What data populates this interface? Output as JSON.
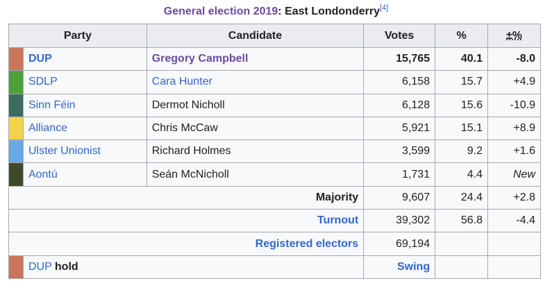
{
  "caption": {
    "link_text": "General election 2019",
    "plain_text": ": East Londonderry",
    "ref": "[4]"
  },
  "headers": {
    "party": "Party",
    "candidate": "Candidate",
    "votes": "Votes",
    "percent": "%",
    "change": "±%"
  },
  "rows": [
    {
      "color": "#c9765d",
      "party": "DUP",
      "candidate": "Gregory Campbell",
      "votes": "15,765",
      "percent": "40.1",
      "change": "-8.0"
    },
    {
      "color": "#4ea03a",
      "party": "SDLP",
      "candidate": "Cara Hunter",
      "votes": "6,158",
      "percent": "15.7",
      "change": "+4.9"
    },
    {
      "color": "#3e6b5f",
      "party": "Sinn Féin",
      "candidate": "Dermot Nicholl",
      "votes": "6,128",
      "percent": "15.6",
      "change": "-10.9"
    },
    {
      "color": "#f1d34a",
      "party": "Alliance",
      "candidate": "Chris McCaw",
      "votes": "5,921",
      "percent": "15.1",
      "change": "+8.9"
    },
    {
      "color": "#6aa8e8",
      "party": "Ulster Unionist",
      "candidate": "Richard Holmes",
      "votes": "3,599",
      "percent": "9.2",
      "change": "+1.6"
    },
    {
      "color": "#3f4a2a",
      "party": "Aontú",
      "candidate": "Seán McNicholl",
      "votes": "1,731",
      "percent": "4.4",
      "change": "New"
    }
  ],
  "majority": {
    "label": "Majority",
    "votes": "9,607",
    "percent": "24.4",
    "change": "+2.8"
  },
  "turnout": {
    "label": "Turnout",
    "votes": "39,302",
    "percent": "56.8",
    "change": "-4.4"
  },
  "registered": {
    "label": "Registered electors",
    "votes": "69,194"
  },
  "result": {
    "color": "#c9765d",
    "party": "DUP",
    "outcome": "hold",
    "swing_label": "Swing"
  }
}
